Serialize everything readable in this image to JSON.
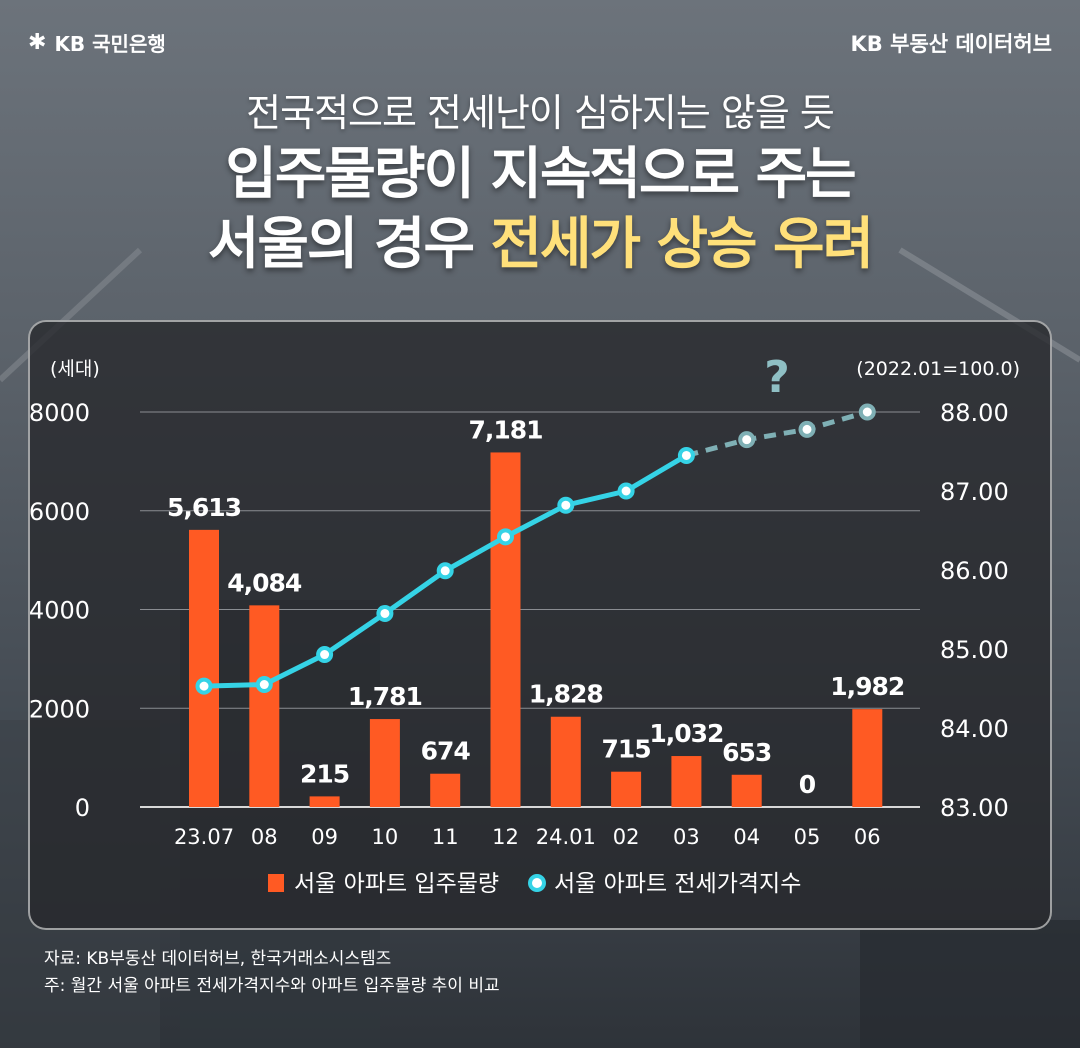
{
  "header": {
    "logo_text": "KB 국민은행",
    "brand_right": "KB 부동산  데이터허브"
  },
  "title": {
    "subtitle": "전국적으로 전세난이 심하지는 않을 듯",
    "line1": "입주물량이 지속적으로 주는",
    "line2_plain": "서울의 경우 ",
    "line2_highlight": "전세가 상승 우려"
  },
  "chart_data": {
    "type": "bar",
    "categories": [
      "23.07",
      "08",
      "09",
      "10",
      "11",
      "12",
      "24.01",
      "02",
      "03",
      "04",
      "05",
      "06"
    ],
    "y_left_label": "(세대)",
    "y_right_label": "(2022.01=100.0)",
    "y_left_range": [
      0,
      8000
    ],
    "y_left_ticks": [
      0,
      2000,
      4000,
      6000,
      8000
    ],
    "y_right_range": [
      83.0,
      88.0
    ],
    "y_right_ticks": [
      "83.00",
      "84.00",
      "85.00",
      "86.00",
      "87.00",
      "88.00"
    ],
    "bar_labels": [
      "5,613",
      "4,084",
      "215",
      "1,781",
      "674",
      "7,181",
      "1,828",
      "715",
      "1,032",
      "653",
      "0",
      "1,982"
    ],
    "series": [
      {
        "name": "서울 아파트 입주물량",
        "type": "bar",
        "axis": "left",
        "color": "#ff5a23",
        "values": [
          5613,
          4084,
          215,
          1781,
          674,
          7181,
          1828,
          715,
          1032,
          653,
          0,
          1982
        ]
      },
      {
        "name": "서울 아파트 전세가격지수",
        "type": "line",
        "axis": "right",
        "color": "#35d3e6",
        "forecast_color": "#7fb0b5",
        "forecast_from_index": 8,
        "values": [
          84.53,
          84.55,
          84.93,
          85.45,
          85.99,
          86.42,
          86.82,
          87.0,
          87.45,
          87.65,
          87.78,
          88.0
        ]
      }
    ],
    "annotation": "?",
    "grid": true,
    "legend_position": "bottom"
  },
  "footnotes": {
    "source": "자료: KB부동산 데이터허브, 한국거래소시스템즈",
    "note": "주: 월간 서울 아파트 전세가격지수와 아파트 입주물량 추이 비교"
  }
}
